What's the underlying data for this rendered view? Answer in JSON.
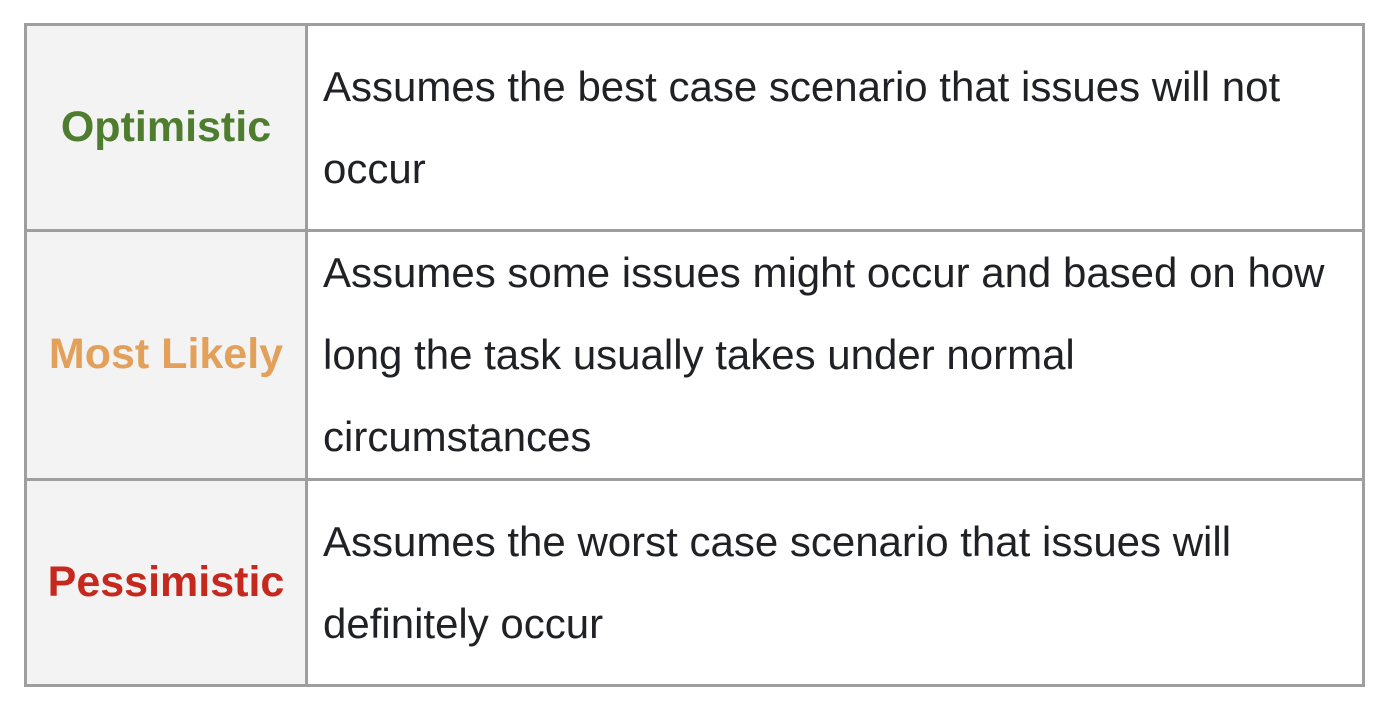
{
  "table": {
    "rows": [
      {
        "label": "Optimistic",
        "label_color": "#4e7d2f",
        "description": "Assumes the best case scenario that issues will not occur"
      },
      {
        "label": "Most Likely",
        "label_color": "#e2a05a",
        "description": "Assumes some issues might occur and based on how long the task usually takes under normal circumstances"
      },
      {
        "label": "Pessimistic",
        "label_color": "#c5281c",
        "description": "Assumes the worst case scenario that issues will definitely occur"
      }
    ]
  }
}
